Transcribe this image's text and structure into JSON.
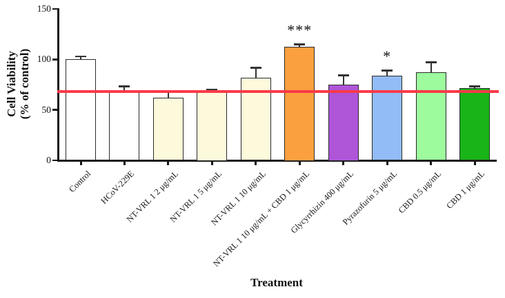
{
  "chart_data": {
    "type": "bar",
    "title": "",
    "xlabel": "Treatment",
    "ylabel_line1": "Cell Viability",
    "ylabel_line2": "(% of control)",
    "ylim": [
      0,
      150
    ],
    "yticks": [
      0,
      50,
      100,
      150
    ],
    "grid": false,
    "legend": "none",
    "reference_line": {
      "value": 68.5,
      "color": "#FB3A48"
    },
    "bar_border_color": "#2a2a2a",
    "axis_color": "#161616",
    "categories": [
      "Control",
      "HCoV-229E",
      "NT-VRL 1 2 μg/mL",
      "NT-VRL 1 5 μg/mL",
      "NT-VRL 1 10 μg/mL",
      "NT-VRL 1 10 μg/mL + CBD 1 μg/mL",
      "Glycyrrhizin 400 μg/mL",
      "Pyrazofurin 5 μg/mL",
      "CBD 0.5 μg/mL",
      "CBD 1 μg/mL"
    ],
    "values": [
      100,
      69,
      62,
      67.5,
      82,
      112.5,
      75,
      84,
      87.5,
      71.5
    ],
    "errors_plus": [
      3,
      4.5,
      6,
      2.5,
      10,
      2.5,
      9.5,
      5,
      10,
      2
    ],
    "colors": [
      "#FFFFFF",
      "#FFFFFF",
      "#FDFADC",
      "#FDFADC",
      "#FDFADC",
      "#FAA03E",
      "#AE55D8",
      "#92BCF6",
      "#9DFB9D",
      "#18B418"
    ],
    "annotations": [
      "",
      "",
      "",
      "",
      "",
      "***",
      "",
      "*",
      "",
      ""
    ]
  }
}
